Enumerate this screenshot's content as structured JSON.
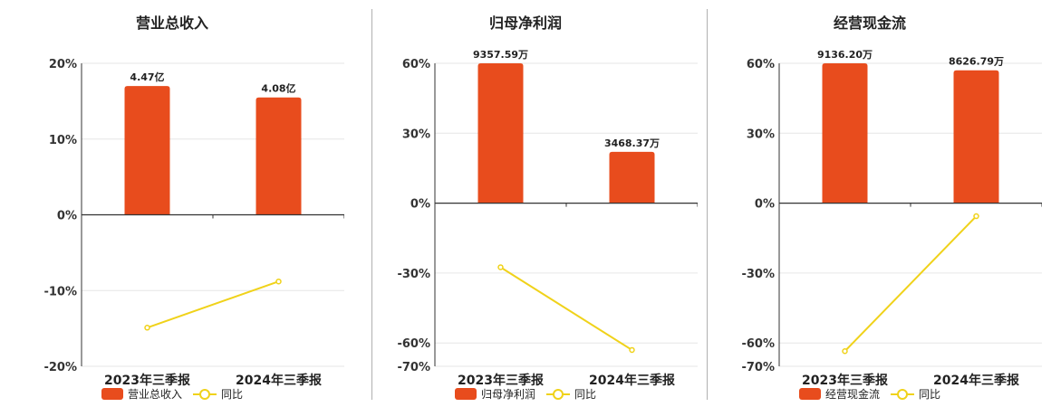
{
  "colors": {
    "bar": "#e84c1d",
    "line": "#f0d21a",
    "grid": "#e6e6e6",
    "axis": "#333333"
  },
  "legend": {
    "line_label": "同比"
  },
  "chart_data": [
    {
      "type": "bar",
      "title": "营业总收入",
      "categories": [
        "2023年三季报",
        "2024年三季报"
      ],
      "series": [
        {
          "name": "营业总收入",
          "kind": "bar",
          "values": [
            17.0,
            15.5
          ],
          "labels": [
            "4.47亿",
            "4.08亿"
          ]
        },
        {
          "name": "同比",
          "kind": "line",
          "values": [
            -14.9,
            -8.8
          ]
        }
      ],
      "yticks": [
        "20%",
        "10%",
        "0%",
        "-10%",
        "-20%"
      ],
      "ylim": [
        -20,
        20
      ]
    },
    {
      "type": "bar",
      "title": "归母净利润",
      "categories": [
        "2023年三季报",
        "2024年三季报"
      ],
      "series": [
        {
          "name": "归母净利润",
          "kind": "bar",
          "values": [
            60,
            22
          ],
          "labels": [
            "9357.59万",
            "3468.37万"
          ]
        },
        {
          "name": "同比",
          "kind": "line",
          "values": [
            -27.5,
            -63
          ]
        }
      ],
      "yticks": [
        "60%",
        "30%",
        "0%",
        "-30%",
        "-60%",
        "-70%"
      ],
      "ylim": [
        -70,
        60
      ]
    },
    {
      "type": "bar",
      "title": "经营现金流",
      "categories": [
        "2023年三季报",
        "2024年三季报"
      ],
      "series": [
        {
          "name": "经营现金流",
          "kind": "bar",
          "values": [
            60,
            57
          ],
          "labels": [
            "9136.20万",
            "8626.79万"
          ]
        },
        {
          "name": "同比",
          "kind": "line",
          "values": [
            -63.5,
            -5.6
          ]
        }
      ],
      "yticks": [
        "60%",
        "30%",
        "0%",
        "-30%",
        "-60%",
        "-70%"
      ],
      "ylim": [
        -70,
        60
      ]
    }
  ]
}
